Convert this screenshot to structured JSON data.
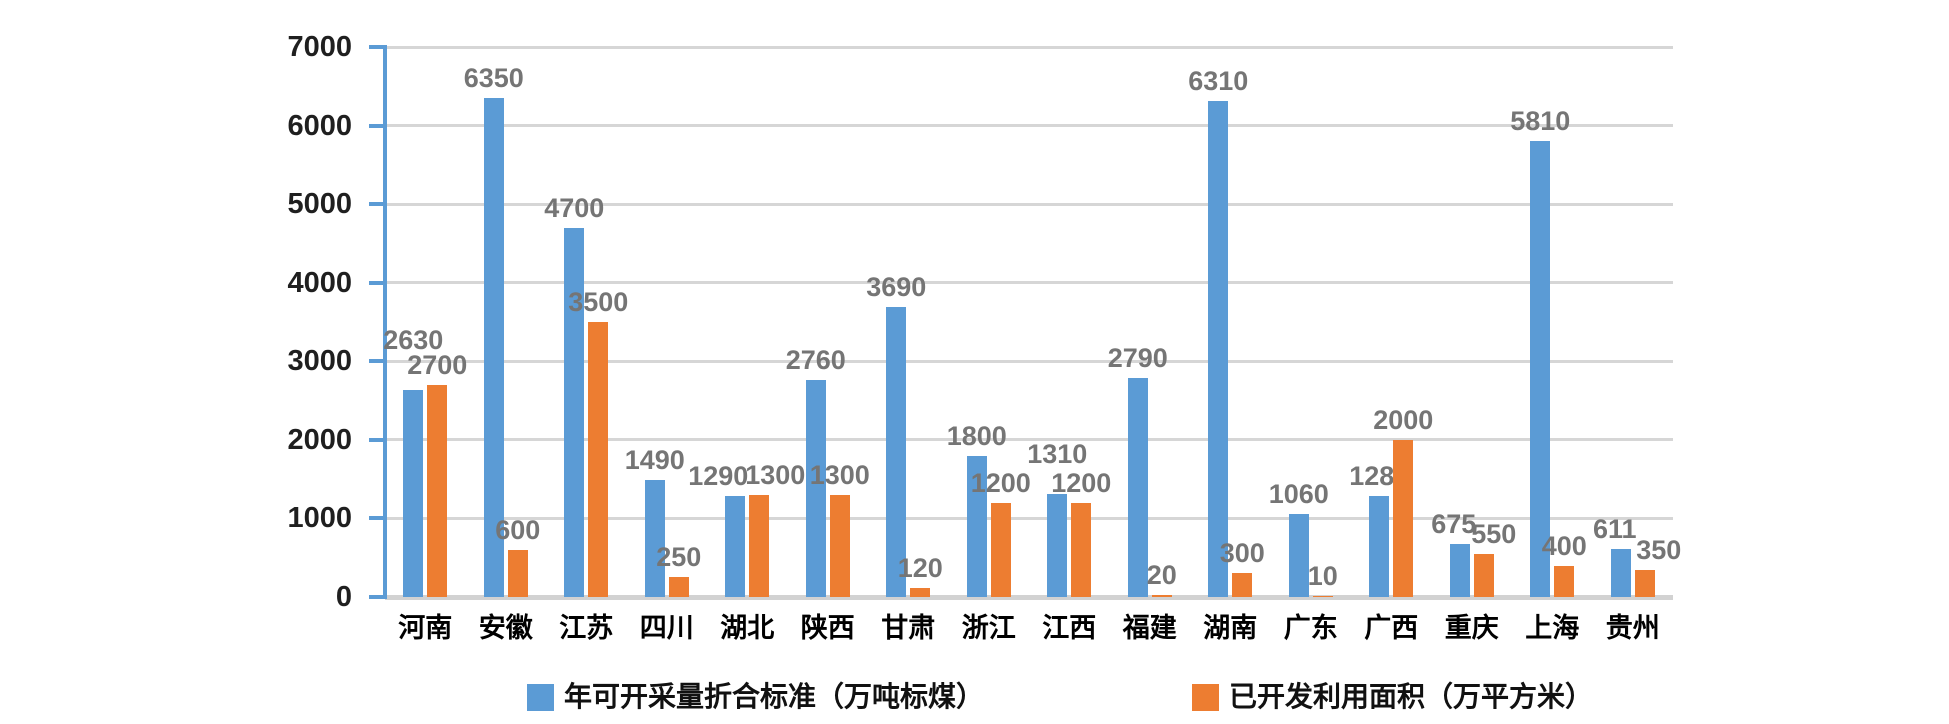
{
  "chart_data": {
    "type": "bar",
    "title": "",
    "xlabel": "",
    "ylabel": "",
    "categories": [
      "河南",
      "安徽",
      "江苏",
      "四川",
      "湖北",
      "陕西",
      "甘肃",
      "浙江",
      "江西",
      "福建",
      "湖南",
      "广东",
      "广西",
      "重庆",
      "上海",
      "贵州"
    ],
    "series": [
      {
        "name": "年可开采量折合标准（万吨标煤）",
        "color": "#5B9BD5",
        "values": [
          2630,
          6350,
          4700,
          1490,
          1290,
          2760,
          3690,
          1800,
          1310,
          2790,
          6310,
          1060,
          1280,
          675,
          5810,
          611
        ]
      },
      {
        "name": "已开发利用面积（万平方米）",
        "color": "#ED7D31",
        "values": [
          2700,
          600,
          3500,
          250,
          1300,
          1300,
          120,
          1200,
          1200,
          20,
          300,
          10,
          2000,
          550,
          400,
          350
        ]
      }
    ],
    "ylim": [
      0,
      7000
    ],
    "yticks": [
      0,
      1000,
      2000,
      3000,
      4000,
      5000,
      6000,
      7000
    ],
    "grid": true,
    "legend_position": "bottom",
    "colors": {
      "axis_line": "#5B9BD5",
      "grid_line": "#D6D6D6",
      "baseline": "#D2D2D2",
      "data_label": "#757575",
      "tick_label": "#1F1F1F",
      "category_label": "#000000",
      "background": "#FFFFFF"
    },
    "label_adjust": {
      "series0_dy": [
        -30,
        0,
        0,
        0,
        0,
        0,
        0,
        0,
        -20,
        0,
        0,
        0,
        0,
        0,
        0,
        0
      ],
      "series0_dx": [
        0,
        0,
        0,
        0,
        -17,
        0,
        0,
        0,
        0,
        0,
        0,
        0,
        0,
        -6,
        0,
        -6
      ],
      "series1_dx": [
        0,
        0,
        0,
        0,
        16,
        0,
        0,
        0,
        0,
        0,
        0,
        0,
        0,
        10,
        0,
        14
      ]
    }
  }
}
